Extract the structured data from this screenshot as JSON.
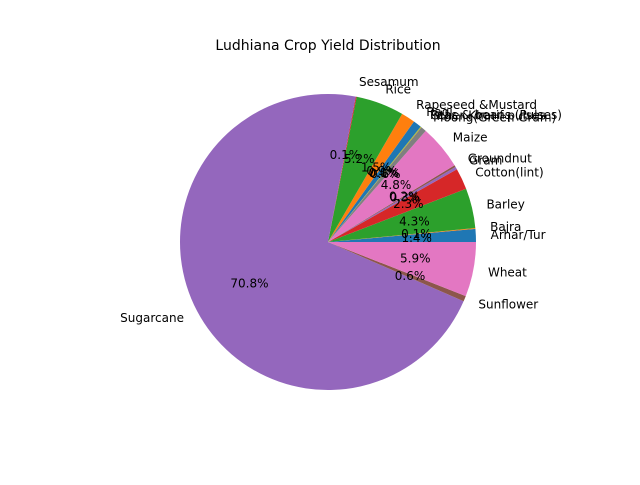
{
  "chart_data": {
    "type": "pie",
    "title": "Ludhiana Crop Yield Distribution",
    "slices": [
      {
        "label": "Arhar/Tur",
        "value": 1.4,
        "pct_label": "1.4%",
        "color": "#1f77b4"
      },
      {
        "label": "Bajra",
        "value": 0.1,
        "pct_label": "0.1%",
        "color": "#ff7f0e"
      },
      {
        "label": "Barley",
        "value": 4.3,
        "pct_label": "4.3%",
        "color": "#2ca02c"
      },
      {
        "label": "Cotton(lint)",
        "value": 2.3,
        "pct_label": "2.3%",
        "color": "#d62728"
      },
      {
        "label": "Gram",
        "value": 0.3,
        "pct_label": "0.3%",
        "color": "#9467bd"
      },
      {
        "label": "Groundnut",
        "value": 0.2,
        "pct_label": "0.2%",
        "color": "#8c564b"
      },
      {
        "label": "Maize",
        "value": 4.8,
        "pct_label": "4.8%",
        "color": "#e377c2"
      },
      {
        "label": "Moong(Green Gram)",
        "value": 0.6,
        "pct_label": "0.6%",
        "color": "#7f7f7f"
      },
      {
        "label": "Other Kharif pulses",
        "value": 0.1,
        "pct_label": "0.1%",
        "color": "#bcbd22"
      },
      {
        "label": "Peas & beans (Pulses)",
        "value": 0.0,
        "pct_label": "0.0%",
        "color": "#17becf"
      },
      {
        "label": "Ragi",
        "value": 0.9,
        "pct_label": "0.9%",
        "color": "#1f77b4"
      },
      {
        "label": "Rapeseed &Mustard",
        "value": 1.5,
        "pct_label": "1.5%",
        "color": "#ff7f0e"
      },
      {
        "label": "Rice",
        "value": 5.2,
        "pct_label": "5.2%",
        "color": "#2ca02c"
      },
      {
        "label": "Sesamum",
        "value": 0.1,
        "pct_label": "0.1%",
        "color": "#d62728"
      },
      {
        "label": "Sugarcane",
        "value": 70.8,
        "pct_label": "70.8%",
        "color": "#9467bd"
      },
      {
        "label": "Sunflower",
        "value": 0.6,
        "pct_label": "0.6%",
        "color": "#8c564b"
      },
      {
        "label": "Wheat",
        "value": 5.9,
        "pct_label": "5.9%",
        "color": "#e377c2"
      }
    ],
    "start_angle_deg": 0,
    "direction": "counterclockwise",
    "grid": false,
    "legend": "none"
  }
}
